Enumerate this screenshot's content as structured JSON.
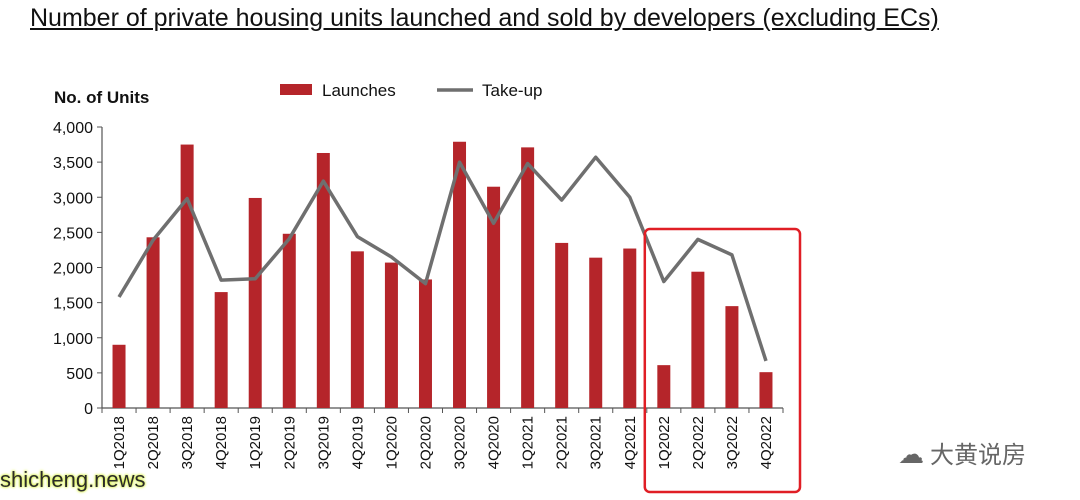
{
  "title": "Number of private housing units launched and sold by developers (excluding ECs)",
  "watermarks": {
    "left": "shicheng.news",
    "right": "大黄说房",
    "right_icon": "wechat-icon"
  },
  "colors": {
    "bar": "#b5252a",
    "line": "#6f6f6f",
    "highlight": "#e01e25",
    "axis": "#555555"
  },
  "chart_data": {
    "type": "bar",
    "title": "",
    "xlabel": "",
    "ylabel": "No. of Units",
    "ylim": [
      0,
      4000
    ],
    "yticks": [
      "0",
      "500",
      "1,000",
      "1,500",
      "2,000",
      "2,500",
      "3,000",
      "3,500",
      "4,000"
    ],
    "grid": false,
    "legend_position": "top",
    "categories": [
      "1Q2018",
      "2Q2018",
      "3Q2018",
      "4Q2018",
      "1Q2019",
      "2Q2019",
      "3Q2019",
      "4Q2019",
      "1Q2020",
      "2Q2020",
      "3Q2020",
      "4Q2020",
      "1Q2021",
      "2Q2021",
      "3Q2021",
      "4Q2021",
      "1Q2022",
      "2Q2022",
      "3Q2022",
      "4Q2022"
    ],
    "series": [
      {
        "name": "Launches",
        "type": "bar",
        "values": [
          900,
          2430,
          3750,
          1650,
          2990,
          2480,
          3630,
          2230,
          2070,
          1830,
          3790,
          3150,
          3710,
          2350,
          2140,
          2270,
          610,
          1940,
          1450,
          510
        ]
      },
      {
        "name": "Take-up",
        "type": "line",
        "values": [
          1580,
          2390,
          2980,
          1820,
          1840,
          2410,
          3230,
          2440,
          2150,
          1770,
          3500,
          2630,
          3480,
          2960,
          3570,
          3000,
          1800,
          2400,
          2180,
          670
        ]
      }
    ],
    "highlight": {
      "from": "1Q2022",
      "to": "4Q2022"
    }
  }
}
